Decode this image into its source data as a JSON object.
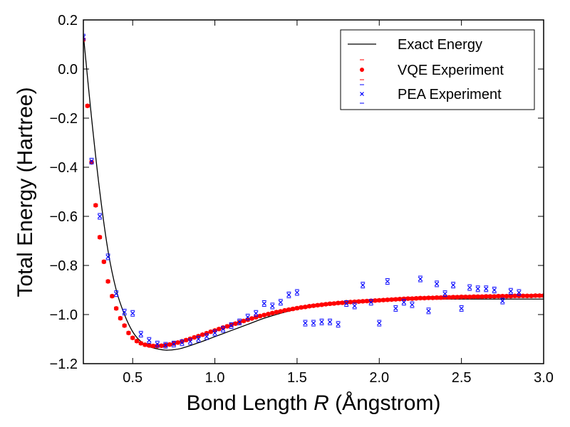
{
  "chart_data": {
    "type": "line",
    "title": "",
    "xlabel": {
      "prefix": "Bond Length ",
      "italic": "R",
      "suffix": " (Ångstrom)"
    },
    "ylabel": "Total Energy (Hartree)",
    "xlim": [
      0.2,
      3.0
    ],
    "ylim": [
      -1.2,
      0.2
    ],
    "grid": false,
    "legend_position": "top-right",
    "x_ticks": [
      0.5,
      1.0,
      1.5,
      2.0,
      2.5,
      3.0
    ],
    "x_tick_labels": [
      "0.5",
      "1.0",
      "1.5",
      "2.0",
      "2.5",
      "3.0"
    ],
    "y_ticks": [
      0.2,
      0.0,
      -0.2,
      -0.4,
      -0.6,
      -0.8,
      -1.0,
      -1.2
    ],
    "y_tick_labels": [
      "0.2",
      "0.0",
      "−0.2",
      "−0.4",
      "−0.6",
      "−0.8",
      "−1.0",
      "−1.2"
    ],
    "series": [
      {
        "name": "Exact Energy",
        "kind": "line",
        "color": "#000000",
        "x": [
          0.2,
          0.25,
          0.3,
          0.35,
          0.4,
          0.45,
          0.5,
          0.55,
          0.6,
          0.65,
          0.7,
          0.75,
          0.8,
          0.9,
          1.0,
          1.1,
          1.2,
          1.3,
          1.4,
          1.5,
          1.6,
          1.7,
          1.8,
          1.9,
          2.0,
          2.2,
          2.4,
          2.6,
          2.8,
          3.0
        ],
        "y": [
          0.14,
          -0.2,
          -0.5,
          -0.74,
          -0.9,
          -1.0,
          -1.07,
          -1.11,
          -1.13,
          -1.14,
          -1.145,
          -1.143,
          -1.137,
          -1.115,
          -1.09,
          -1.065,
          -1.04,
          -1.015,
          -0.995,
          -0.978,
          -0.965,
          -0.955,
          -0.948,
          -0.944,
          -0.941,
          -0.938,
          -0.937,
          -0.937,
          -0.937,
          -0.937
        ]
      },
      {
        "name": "VQE Experiment",
        "kind": "scatter",
        "marker": "circle",
        "color": "#ff0000",
        "x": [
          0.2,
          0.225,
          0.25,
          0.275,
          0.3,
          0.325,
          0.35,
          0.375,
          0.4,
          0.425,
          0.45,
          0.475,
          0.5,
          0.525,
          0.55,
          0.575,
          0.6,
          0.625,
          0.65,
          0.675,
          0.7,
          0.725,
          0.75,
          0.775,
          0.8,
          0.825,
          0.85,
          0.875,
          0.9,
          0.925,
          0.95,
          0.975,
          1.0,
          1.025,
          1.05,
          1.075,
          1.1,
          1.125,
          1.15,
          1.175,
          1.2,
          1.225,
          1.25,
          1.275,
          1.3,
          1.325,
          1.35,
          1.375,
          1.4,
          1.425,
          1.45,
          1.475,
          1.5,
          1.525,
          1.55,
          1.575,
          1.6,
          1.625,
          1.65,
          1.675,
          1.7,
          1.725,
          1.75,
          1.775,
          1.8,
          1.825,
          1.85,
          1.875,
          1.9,
          1.925,
          1.95,
          1.975,
          2.0,
          2.025,
          2.05,
          2.075,
          2.1,
          2.125,
          2.15,
          2.175,
          2.2,
          2.225,
          2.25,
          2.275,
          2.3,
          2.325,
          2.35,
          2.375,
          2.4,
          2.425,
          2.45,
          2.475,
          2.5,
          2.525,
          2.55,
          2.575,
          2.6,
          2.625,
          2.65,
          2.675,
          2.7,
          2.725,
          2.75,
          2.775,
          2.8,
          2.825,
          2.85,
          2.875,
          2.9,
          2.925,
          2.95,
          2.975,
          3.0
        ],
        "y": [
          0.12,
          -0.15,
          -0.38,
          -0.555,
          -0.685,
          -0.785,
          -0.865,
          -0.925,
          -0.975,
          -1.015,
          -1.045,
          -1.075,
          -1.095,
          -1.108,
          -1.117,
          -1.123,
          -1.126,
          -1.128,
          -1.128,
          -1.127,
          -1.125,
          -1.122,
          -1.118,
          -1.114,
          -1.109,
          -1.104,
          -1.099,
          -1.093,
          -1.088,
          -1.082,
          -1.076,
          -1.07,
          -1.065,
          -1.059,
          -1.053,
          -1.048,
          -1.042,
          -1.037,
          -1.031,
          -1.026,
          -1.021,
          -1.016,
          -1.011,
          -1.006,
          -1.002,
          -0.998,
          -0.994,
          -0.99,
          -0.987,
          -0.983,
          -0.98,
          -0.977,
          -0.974,
          -0.971,
          -0.969,
          -0.966,
          -0.964,
          -0.962,
          -0.96,
          -0.958,
          -0.956,
          -0.955,
          -0.953,
          -0.952,
          -0.95,
          -0.949,
          -0.948,
          -0.947,
          -0.946,
          -0.945,
          -0.944,
          -0.943,
          -0.942,
          -0.941,
          -0.94,
          -0.939,
          -0.938,
          -0.937,
          -0.936,
          -0.935,
          -0.935,
          -0.934,
          -0.933,
          -0.933,
          -0.932,
          -0.932,
          -0.931,
          -0.931,
          -0.93,
          -0.93,
          -0.929,
          -0.929,
          -0.928,
          -0.928,
          -0.928,
          -0.927,
          -0.927,
          -0.927,
          -0.926,
          -0.926,
          -0.926,
          -0.925,
          -0.925,
          -0.925,
          -0.925,
          -0.924,
          -0.924,
          -0.924,
          -0.924,
          -0.924,
          -0.923,
          -0.923,
          -0.923
        ]
      },
      {
        "name": "PEA Experiment",
        "kind": "scatter",
        "marker": "x",
        "color": "#0000ff",
        "x": [
          0.2,
          0.25,
          0.3,
          0.35,
          0.4,
          0.45,
          0.5,
          0.55,
          0.6,
          0.65,
          0.7,
          0.75,
          0.8,
          0.85,
          0.9,
          0.95,
          1.0,
          1.05,
          1.1,
          1.15,
          1.2,
          1.25,
          1.3,
          1.35,
          1.4,
          1.45,
          1.5,
          1.55,
          1.6,
          1.65,
          1.7,
          1.75,
          1.8,
          1.85,
          1.9,
          1.95,
          2.0,
          2.05,
          2.1,
          2.15,
          2.2,
          2.25,
          2.3,
          2.35,
          2.4,
          2.45,
          2.5,
          2.55,
          2.6,
          2.65,
          2.7,
          2.75,
          2.8,
          2.85
        ],
        "y": [
          0.13,
          -0.375,
          -0.6,
          -0.765,
          -0.915,
          -0.99,
          -0.995,
          -1.08,
          -1.105,
          -1.12,
          -1.125,
          -1.12,
          -1.115,
          -1.11,
          -1.1,
          -1.09,
          -1.075,
          -1.06,
          -1.045,
          -1.03,
          -1.01,
          -0.995,
          -0.955,
          -0.965,
          -0.95,
          -0.92,
          -0.91,
          -1.035,
          -1.035,
          -1.03,
          -1.03,
          -1.04,
          -0.955,
          -0.965,
          -0.88,
          -0.95,
          -1.035,
          -0.865,
          -0.975,
          -0.95,
          -0.96,
          -0.855,
          -0.985,
          -0.875,
          -0.915,
          -0.88,
          -0.975,
          -0.89,
          -0.895,
          -0.895,
          -0.9,
          -0.945,
          -0.905,
          -0.91
        ]
      }
    ]
  }
}
